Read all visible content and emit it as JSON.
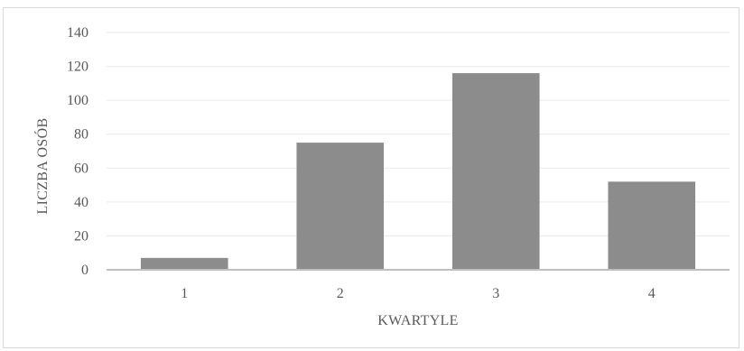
{
  "chart_data": {
    "type": "bar",
    "title": "",
    "xlabel": "KWARTYLE",
    "ylabel": "LICZBA OSÓB",
    "categories": [
      "1",
      "2",
      "3",
      "4"
    ],
    "values": [
      7,
      75,
      116,
      52
    ],
    "ylim": [
      0,
      140
    ],
    "yticks": [
      0,
      20,
      40,
      60,
      80,
      100,
      120,
      140
    ],
    "grid": true,
    "legend": "none",
    "colors": {
      "bar": "#8c8c8c",
      "grid": "#eaeaea",
      "axis": "#bfbfbf",
      "text": "#595959"
    }
  }
}
